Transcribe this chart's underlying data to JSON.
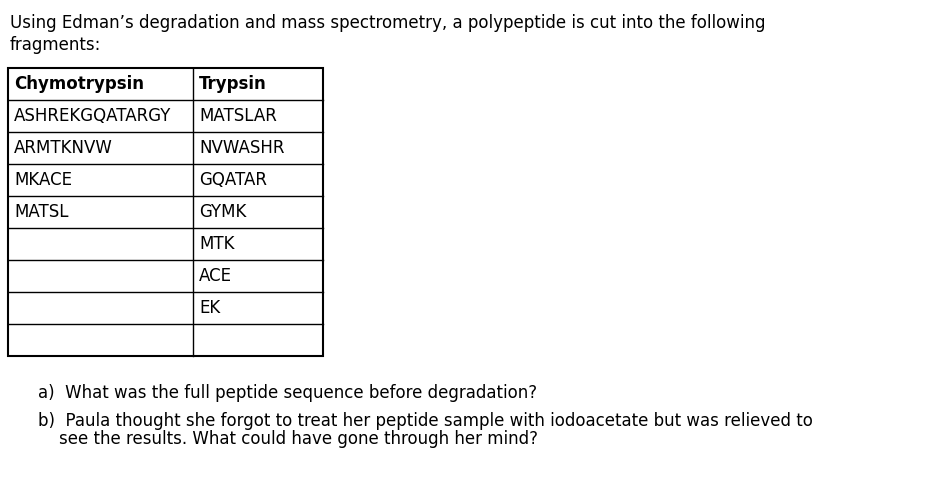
{
  "intro_line1": "Using Edman’s degradation and mass spectrometry, a polypeptide is cut into the following",
  "intro_line2": "fragments:",
  "col1_header": "Chymotrypsin",
  "col2_header": "Trypsin",
  "col1_data": [
    "ASHREKGQATARGY",
    "ARMTKNVW",
    "MKACE",
    "MATSL",
    "",
    "",
    "",
    ""
  ],
  "col2_data": [
    "MATSLAR",
    "NVWASHR",
    "GQATAR",
    "GYMK",
    "MTK",
    "ACE",
    "EK",
    ""
  ],
  "question_a": "a)  What was the full peptide sequence before degradation?",
  "question_b_line1": "b)  Paula thought she forgot to treat her peptide sample with iodoacetate but was relieved to",
  "question_b_line2": "    see the results. What could have gone through her mind?",
  "bg_color": "#ffffff",
  "text_color": "#000000",
  "font_size": 12,
  "bold_font_size": 12,
  "fig_width": 9.41,
  "fig_height": 4.97,
  "dpi": 100
}
